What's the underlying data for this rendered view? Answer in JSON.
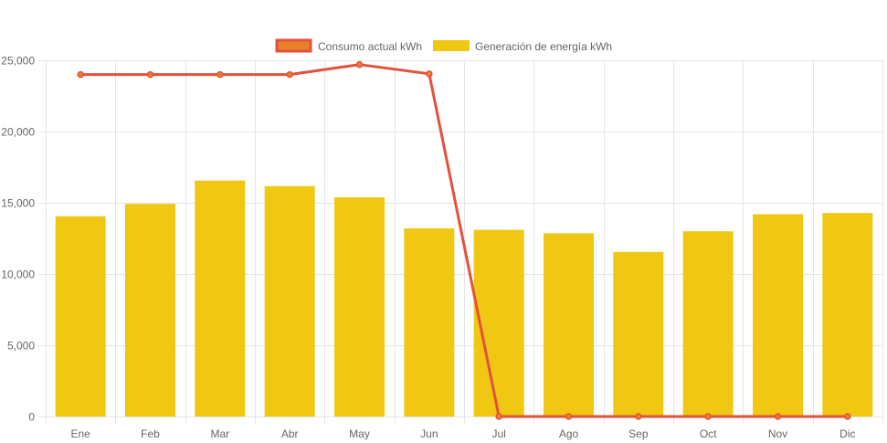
{
  "chart_data": {
    "type": "bar",
    "categories": [
      "Ene",
      "Feb",
      "Mar",
      "Abr",
      "May",
      "Jun",
      "Jul",
      "Ago",
      "Sep",
      "Oct",
      "Nov",
      "Dic"
    ],
    "ylim": [
      0,
      25000
    ],
    "yticks": [
      0,
      5000,
      10000,
      15000,
      20000,
      25000
    ],
    "ytick_labels": [
      "0",
      "5,000",
      "10,000",
      "15,000",
      "20,000",
      "25,000"
    ],
    "grid": true,
    "legend_position": "top-center",
    "series": [
      {
        "name": "Consumo actual kWh",
        "type": "line",
        "color": "#e4513a",
        "point_fill": "#e8812a",
        "values": [
          24000,
          24000,
          24000,
          24000,
          24700,
          24050,
          0,
          0,
          0,
          0,
          0,
          0
        ]
      },
      {
        "name": "Generación de energía kWh",
        "type": "bar",
        "color": "#f0c712",
        "values": [
          14050,
          14920,
          16560,
          16170,
          15380,
          13200,
          13100,
          12860,
          11550,
          13000,
          14200,
          14280
        ]
      }
    ]
  }
}
